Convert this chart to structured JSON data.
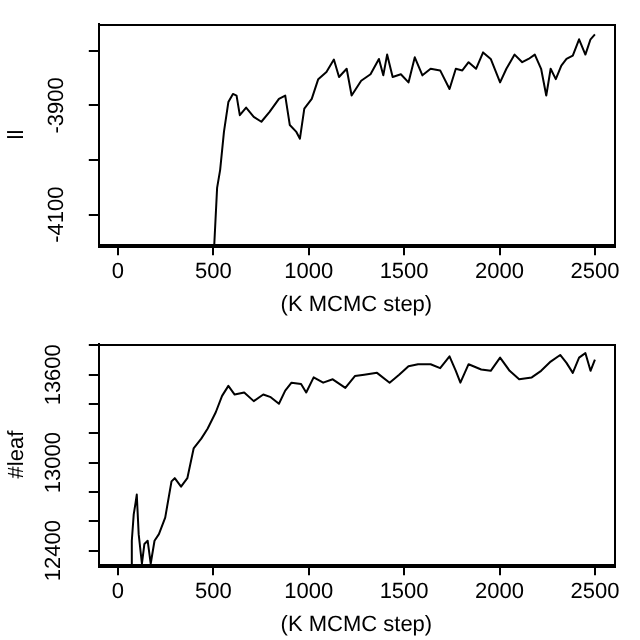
{
  "chart_data": [
    {
      "type": "line",
      "xlabel": "(K MCMC step)",
      "ylabel": "ll",
      "color": "#000000",
      "xlim": [
        -100,
        2600
      ],
      "xticks": [
        0,
        500,
        1000,
        1500,
        2000,
        2500
      ],
      "ylim": [
        -4156,
        -3751
      ],
      "yticks": [
        -4100,
        {
          "value": -4000,
          "label": null
        },
        -3900,
        {
          "value": -3800,
          "label": null
        }
      ],
      "x": [
        505,
        520,
        536,
        556,
        579,
        603,
        622,
        639,
        672,
        712,
        752,
        795,
        844,
        877,
        901,
        934,
        954,
        977,
        1016,
        1050,
        1093,
        1132,
        1159,
        1199,
        1225,
        1275,
        1324,
        1368,
        1391,
        1411,
        1440,
        1483,
        1523,
        1556,
        1596,
        1639,
        1689,
        1738,
        1771,
        1805,
        1838,
        1877,
        1914,
        1954,
        2003,
        2036,
        2079,
        2119,
        2152,
        2185,
        2218,
        2245,
        2268,
        2295,
        2324,
        2351,
        2384,
        2417,
        2450,
        2477,
        2500
      ],
      "values": [
        -4156,
        -4051,
        -4018,
        -3948,
        -3894,
        -3879,
        -3882,
        -3918,
        -3904,
        -3921,
        -3930,
        -3912,
        -3888,
        -3882,
        -3936,
        -3948,
        -3961,
        -3906,
        -3888,
        -3852,
        -3839,
        -3816,
        -3848,
        -3833,
        -3882,
        -3855,
        -3843,
        -3815,
        -3845,
        -3807,
        -3848,
        -3843,
        -3858,
        -3812,
        -3845,
        -3833,
        -3836,
        -3870,
        -3833,
        -3836,
        -3821,
        -3833,
        -3803,
        -3815,
        -3858,
        -3833,
        -3807,
        -3821,
        -3815,
        -3807,
        -3833,
        -3882,
        -3833,
        -3852,
        -3827,
        -3815,
        -3809,
        -3779,
        -3807,
        -3779,
        -3770
      ]
    },
    {
      "type": "line",
      "xlabel": "(K MCMC step)",
      "ylabel": "#leaf",
      "color": "#000000",
      "xlim": [
        -100,
        2600
      ],
      "xticks": [
        0,
        500,
        1000,
        1500,
        2000,
        2500
      ],
      "ylim": [
        12300,
        13810
      ],
      "yticks": [
        12400,
        {
          "value": 12600,
          "label": null
        },
        {
          "value": 12800,
          "label": null
        },
        13000,
        {
          "value": 13200,
          "label": null
        },
        {
          "value": 13400,
          "label": null
        },
        13600,
        {
          "value": 13800,
          "label": null
        }
      ],
      "x": [
        66,
        73,
        83,
        93,
        99,
        109,
        126,
        139,
        156,
        172,
        192,
        215,
        248,
        281,
        298,
        331,
        364,
        397,
        437,
        470,
        513,
        546,
        579,
        612,
        662,
        712,
        762,
        801,
        844,
        877,
        910,
        960,
        987,
        1026,
        1076,
        1126,
        1192,
        1242,
        1291,
        1358,
        1424,
        1474,
        1523,
        1573,
        1639,
        1689,
        1738,
        1771,
        1795,
        1838,
        1904,
        1954,
        2003,
        2053,
        2103,
        2169,
        2218,
        2268,
        2318,
        2351,
        2384,
        2417,
        2450,
        2477,
        2500
      ],
      "values": [
        12300,
        12467,
        12647,
        12728,
        12782,
        12512,
        12310,
        12445,
        12467,
        12310,
        12467,
        12512,
        12625,
        12872,
        12894,
        12836,
        12894,
        13097,
        13164,
        13231,
        13344,
        13456,
        13524,
        13465,
        13479,
        13420,
        13465,
        13447,
        13402,
        13492,
        13546,
        13537,
        13479,
        13582,
        13546,
        13569,
        13510,
        13591,
        13600,
        13613,
        13546,
        13600,
        13658,
        13672,
        13672,
        13645,
        13726,
        13627,
        13546,
        13672,
        13636,
        13627,
        13717,
        13627,
        13569,
        13582,
        13627,
        13690,
        13735,
        13681,
        13613,
        13717,
        13748,
        13627,
        13703
      ]
    }
  ]
}
